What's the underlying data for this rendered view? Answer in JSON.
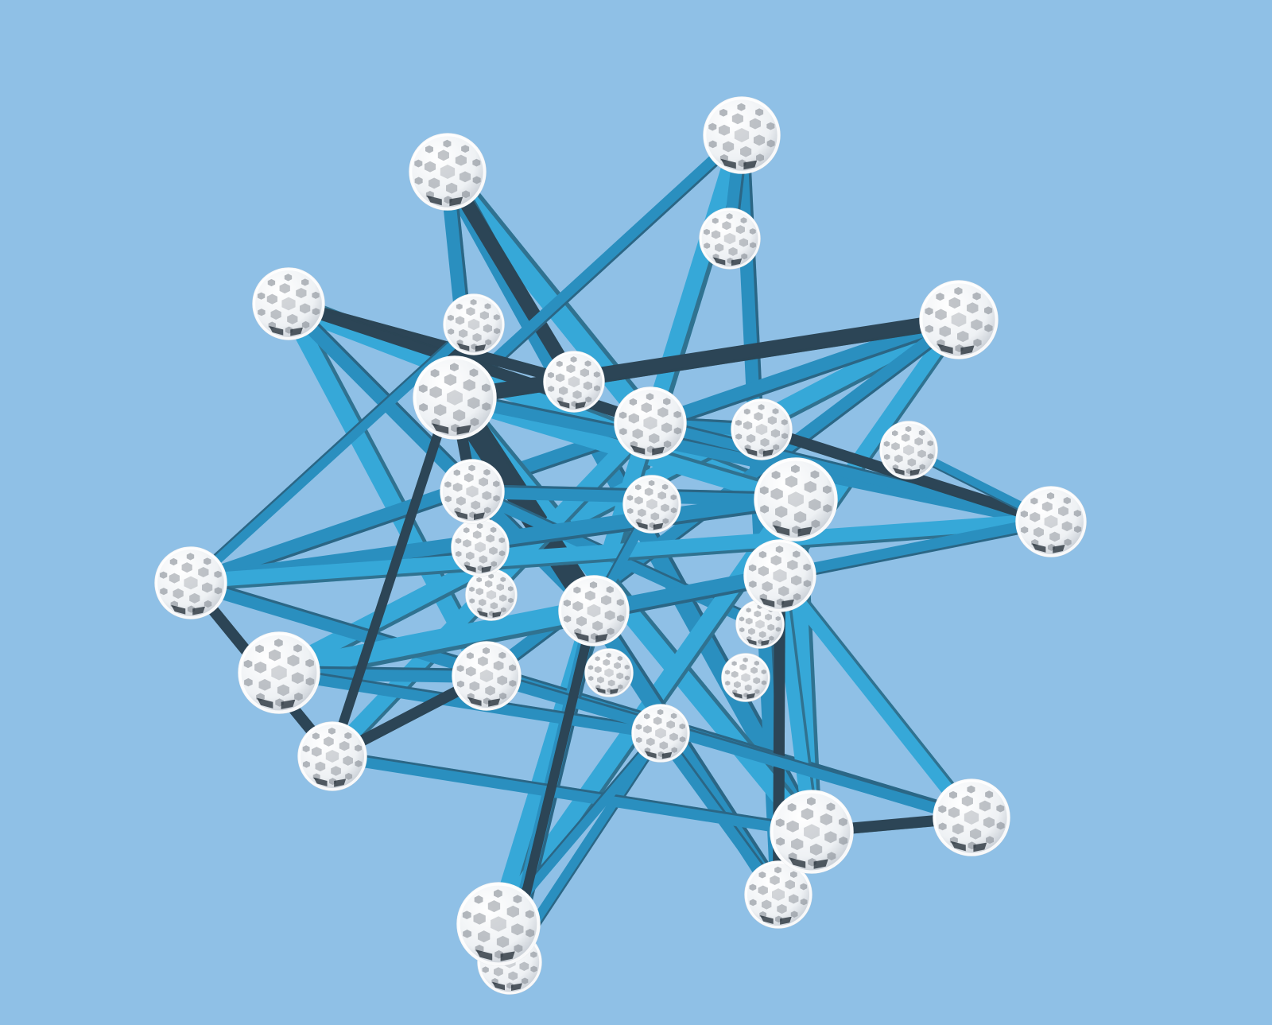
{
  "scene": {
    "background": "#8fc0e6",
    "strut_colors": {
      "light": "#36a8d8",
      "mid": "#2a8fbf",
      "dark": "#2c4556"
    },
    "node_colors": {
      "fill": "#ffffff",
      "shade": "#d8dde2",
      "hole": "#8a9098"
    },
    "node_count": 32,
    "strut_count": 60
  }
}
